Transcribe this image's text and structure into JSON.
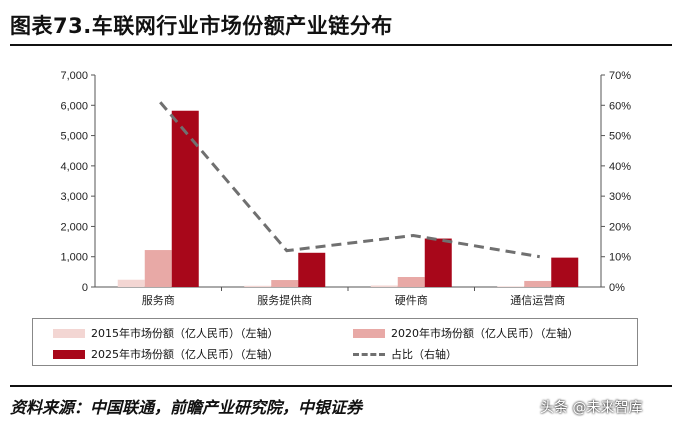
{
  "title": "图表73.车联网行业市场份额产业链分布",
  "source": "资料来源：中国联通，前瞻产业研究院，中银证券",
  "watermark": "头条 @未来智库",
  "colors": {
    "s2015": "#f3d6d3",
    "s2020": "#e8a9a6",
    "s2025": "#a8071a",
    "share": "#707070"
  },
  "chart_data": {
    "type": "bar",
    "categories": [
      "服务商",
      "服务提供商",
      "硬件商",
      "通信运营商"
    ],
    "series": [
      {
        "name": "2015年市场份额（亿人民币）（左轴）",
        "values": [
          240,
          40,
          50,
          20
        ],
        "axis": "left",
        "type": "bar"
      },
      {
        "name": "2020年市场份额（亿人民币）（左轴）",
        "values": [
          1220,
          230,
          330,
          200
        ],
        "axis": "left",
        "type": "bar"
      },
      {
        "name": "2025年市场份额（亿人民币）（左轴）",
        "values": [
          5820,
          1130,
          1600,
          970
        ],
        "axis": "left",
        "type": "bar"
      },
      {
        "name": "占比（右轴）",
        "values": [
          61,
          12,
          17,
          10
        ],
        "axis": "right",
        "type": "line"
      }
    ],
    "left_axis": {
      "min": 0,
      "max": 7000,
      "ticks": [
        "0",
        "1,000",
        "2,000",
        "3,000",
        "4,000",
        "5,000",
        "6,000",
        "7,000"
      ]
    },
    "right_axis": {
      "min": 0,
      "max": 70,
      "ticks": [
        "0%",
        "10%",
        "20%",
        "30%",
        "40%",
        "50%",
        "60%",
        "70%"
      ]
    },
    "legend": [
      "2015年市场份额（亿人民币）（左轴）",
      "2020年市场份额（亿人民币）（左轴）",
      "2025年市场份额（亿人民币）（左轴）",
      "占比（右轴）"
    ]
  }
}
